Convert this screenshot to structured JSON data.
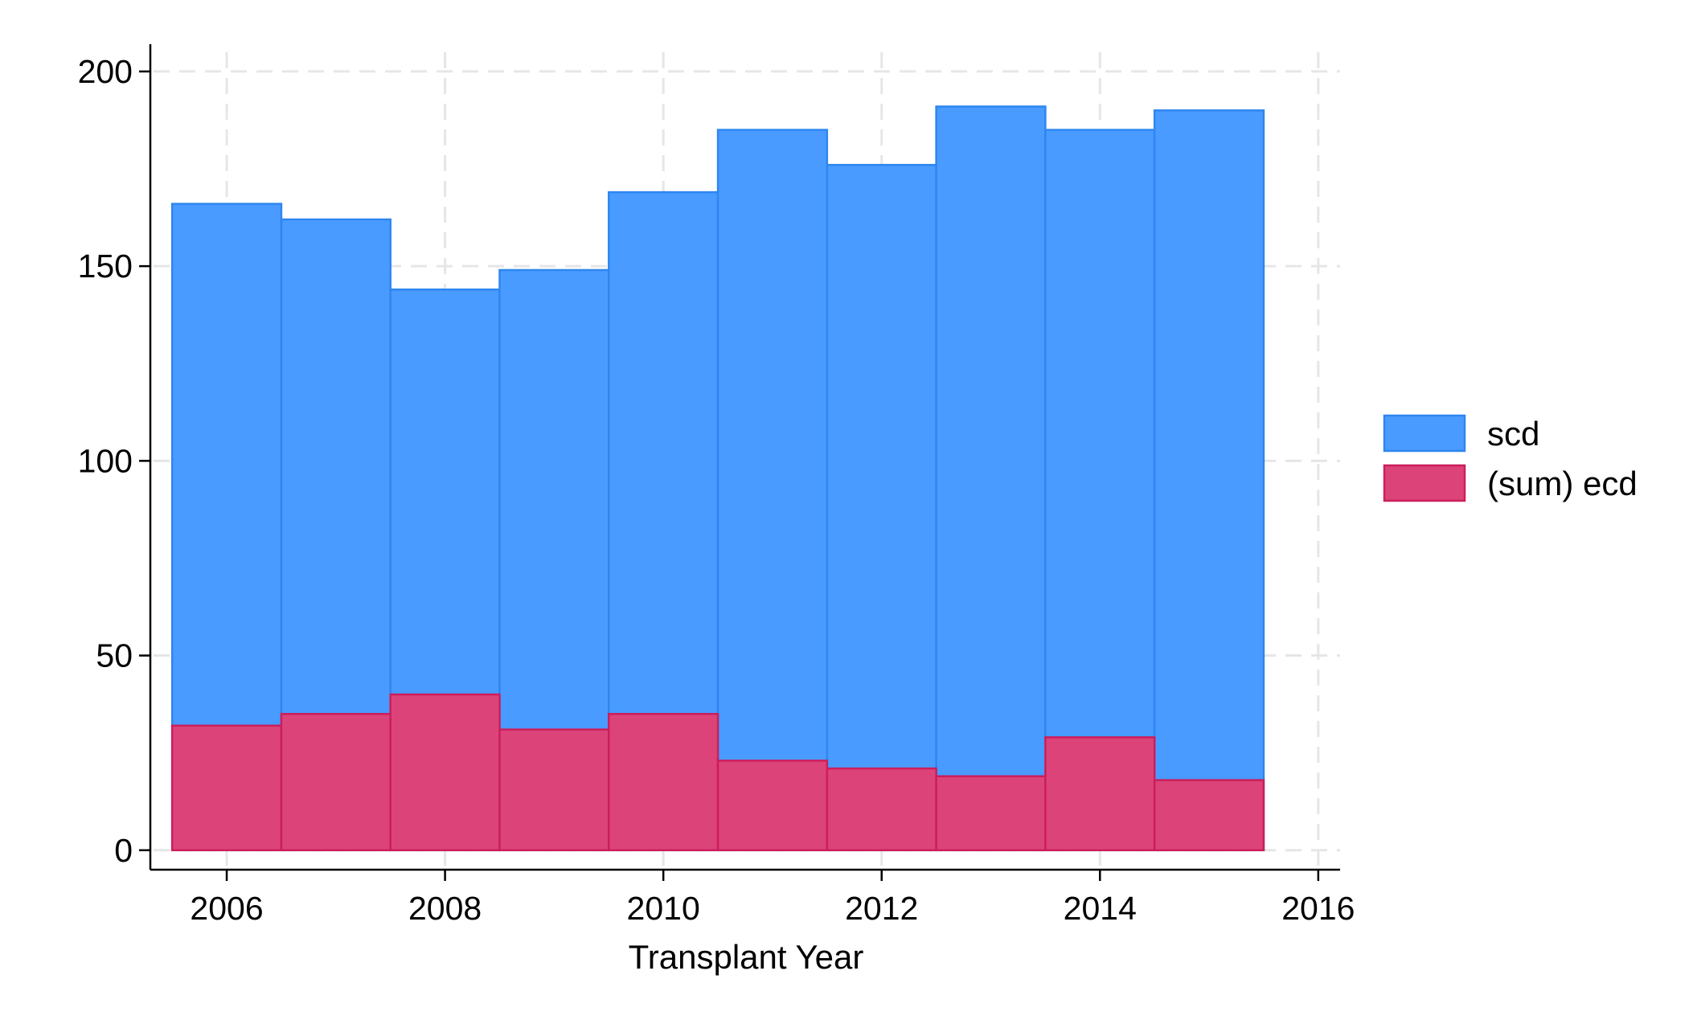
{
  "chart_data": {
    "type": "bar",
    "subtype": "overlaid histogram",
    "title": "",
    "xlabel": "Transplant Year",
    "ylabel": "",
    "x": [
      2006,
      2007,
      2008,
      2009,
      2010,
      2011,
      2012,
      2013,
      2014,
      2015
    ],
    "series": [
      {
        "name": "scd",
        "color": "#4a9bff",
        "edge_color": "#2f86f0",
        "values": [
          166,
          162,
          144,
          149,
          169,
          185,
          176,
          191,
          185,
          190
        ]
      },
      {
        "name": "(sum) ecd",
        "color": "#dc4479",
        "edge_color": "#cc1e5c",
        "values": [
          32,
          35,
          40,
          31,
          35,
          23,
          21,
          19,
          29,
          18
        ]
      }
    ],
    "xlim": [
      2005.3,
      2016.2
    ],
    "ylim": [
      -5,
      207
    ],
    "xticks": [
      "2006",
      "2008",
      "2010",
      "2012",
      "2014",
      "2016"
    ],
    "yticks": [
      "0",
      "50",
      "100",
      "150",
      "200"
    ],
    "grid": true,
    "legend_position": "right"
  }
}
